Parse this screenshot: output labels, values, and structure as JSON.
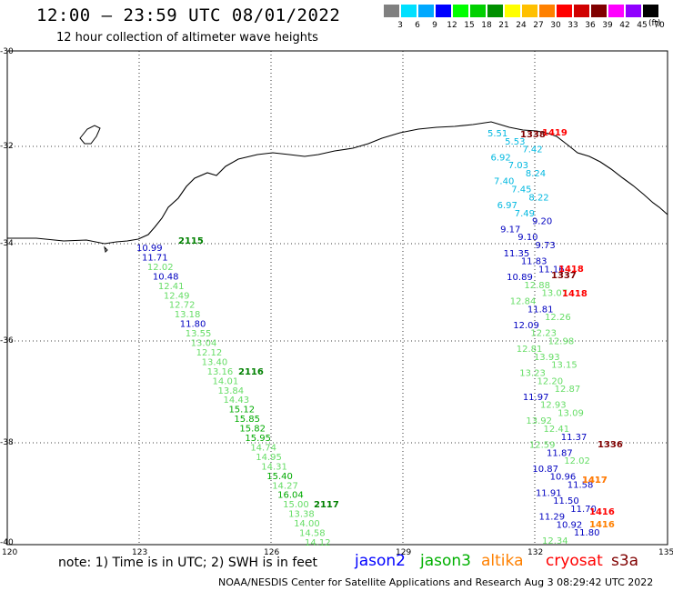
{
  "header": {
    "title": "12:00 – 23:59 UTC 08/01/2022",
    "subtitle": "12 hour collection of altimeter wave heights"
  },
  "color_scale": {
    "colors": [
      "#808080",
      "#00e0ff",
      "#00a8ff",
      "#0000ff",
      "#00ff00",
      "#00d000",
      "#009000",
      "#ffff00",
      "#ffc000",
      "#ff8000",
      "#ff0000",
      "#d00000",
      "#800000",
      "#ff00ff",
      "#9000ff",
      "#000000"
    ],
    "labels": [
      "3",
      "6",
      "9",
      "12",
      "15",
      "18",
      "21",
      "24",
      "27",
      "30",
      "33",
      "36",
      "39",
      "42",
      "45",
      "70"
    ],
    "unit": "(ft)"
  },
  "axes": {
    "y_labels": [
      "-30",
      "-32",
      "-34",
      "-36",
      "-38",
      "-40"
    ],
    "x_labels": [
      "120",
      "123",
      "126",
      "129",
      "132",
      "135"
    ]
  },
  "footer": {
    "note": "note: 1) Time is in UTC; 2) SWH is in feet",
    "legend": [
      {
        "name": "jason2",
        "color": "#0000ff"
      },
      {
        "name": "jason3",
        "color": "#00b000"
      },
      {
        "name": "altika",
        "color": "#ff8000"
      },
      {
        "name": "cryosat",
        "color": "#ff0000"
      },
      {
        "name": "s3a",
        "color": "#800000"
      }
    ],
    "credit": "NOAA/NESDIS Center for Satellite Applications and Research     Aug  3 08:29:42 UTC 2022"
  },
  "tracks": [
    {
      "label": "2115",
      "color": "#008000",
      "points": [
        {
          "v": "10.99",
          "c": "#0000c0"
        },
        {
          "v": "11.71",
          "c": "#0000c0"
        },
        {
          "v": "12.02",
          "c": "#66dd66"
        },
        {
          "v": "10.48",
          "c": "#0000c0"
        },
        {
          "v": "12.41",
          "c": "#66dd66"
        },
        {
          "v": "12.49",
          "c": "#66dd66"
        },
        {
          "v": "12.72",
          "c": "#66dd66"
        },
        {
          "v": "13.18",
          "c": "#66dd66"
        },
        {
          "v": "11.80",
          "c": "#0000c0"
        },
        {
          "v": "13.55",
          "c": "#66dd66"
        },
        {
          "v": "13.04",
          "c": "#66dd66"
        },
        {
          "v": "12.12",
          "c": "#66dd66"
        },
        {
          "v": "13.40",
          "c": "#66dd66"
        },
        {
          "v": "13.16",
          "c": "#66dd66"
        },
        {
          "v": "14.01",
          "c": "#66dd66"
        },
        {
          "v": "13.84",
          "c": "#66dd66"
        },
        {
          "v": "14.43",
          "c": "#66dd66"
        },
        {
          "v": "15.12",
          "c": "#00aa00"
        },
        {
          "v": "15.85",
          "c": "#00aa00"
        },
        {
          "v": "15.82",
          "c": "#00aa00"
        },
        {
          "v": "15.95",
          "c": "#00aa00"
        },
        {
          "v": "14.74",
          "c": "#66dd66"
        },
        {
          "v": "14.95",
          "c": "#66dd66"
        },
        {
          "v": "14.31",
          "c": "#66dd66"
        },
        {
          "v": "15.40",
          "c": "#00aa00"
        },
        {
          "v": "14.27",
          "c": "#66dd66"
        },
        {
          "v": "16.04",
          "c": "#00aa00"
        },
        {
          "v": "15.00",
          "c": "#66dd66"
        },
        {
          "v": "13.38",
          "c": "#66dd66"
        },
        {
          "v": "14.00",
          "c": "#66dd66"
        },
        {
          "v": "14.58",
          "c": "#66dd66"
        },
        {
          "v": "14.12",
          "c": "#66dd66"
        }
      ]
    },
    {
      "label": "2116",
      "color": "#008000",
      "points": []
    },
    {
      "label": "2117",
      "color": "#008000",
      "points": []
    }
  ],
  "east_tracks": {
    "labels": [
      {
        "t": "1419",
        "c": "#ff0000"
      },
      {
        "t": "1338",
        "c": "#800000"
      },
      {
        "t": "1418",
        "c": "#ff0000"
      },
      {
        "t": "1337",
        "c": "#800000"
      },
      {
        "t": "1418",
        "c": "#ff0000"
      },
      {
        "t": "1336",
        "c": "#800000"
      },
      {
        "t": "1417",
        "c": "#ff0000"
      },
      {
        "t": "1417",
        "c": "#ff8000"
      },
      {
        "t": "1416",
        "c": "#ff0000"
      },
      {
        "t": "1416",
        "c": "#ff8000"
      }
    ],
    "values": [
      {
        "v": "5.51",
        "c": "#00b8e0"
      },
      {
        "v": "5.53",
        "c": "#00b8e0"
      },
      {
        "v": "7.42",
        "c": "#00b8e0"
      },
      {
        "v": "6.92",
        "c": "#00b8e0"
      },
      {
        "v": "7.03",
        "c": "#00b8e0"
      },
      {
        "v": "8.24",
        "c": "#00b8e0"
      },
      {
        "v": "7.40",
        "c": "#00b8e0"
      },
      {
        "v": "7.45",
        "c": "#00b8e0"
      },
      {
        "v": "8.22",
        "c": "#00b8e0"
      },
      {
        "v": "6.97",
        "c": "#00b8e0"
      },
      {
        "v": "7.49",
        "c": "#00b8e0"
      },
      {
        "v": "9.20",
        "c": "#0000c0"
      },
      {
        "v": "9.17",
        "c": "#0000c0"
      },
      {
        "v": "9.10",
        "c": "#0000c0"
      },
      {
        "v": "9.73",
        "c": "#0000c0"
      },
      {
        "v": "11.35",
        "c": "#0000c0"
      },
      {
        "v": "11.83",
        "c": "#0000c0"
      },
      {
        "v": "11.16",
        "c": "#0000c0"
      },
      {
        "v": "10.89",
        "c": "#0000c0"
      },
      {
        "v": "12.88",
        "c": "#66dd66"
      },
      {
        "v": "13.07",
        "c": "#66dd66"
      },
      {
        "v": "12.84",
        "c": "#66dd66"
      },
      {
        "v": "11.81",
        "c": "#0000c0"
      },
      {
        "v": "12.26",
        "c": "#66dd66"
      },
      {
        "v": "12.09",
        "c": "#0000c0"
      },
      {
        "v": "12.23",
        "c": "#66dd66"
      },
      {
        "v": "12.98",
        "c": "#66dd66"
      },
      {
        "v": "12.81",
        "c": "#66dd66"
      },
      {
        "v": "13.93",
        "c": "#66dd66"
      },
      {
        "v": "13.15",
        "c": "#66dd66"
      },
      {
        "v": "13.23",
        "c": "#66dd66"
      },
      {
        "v": "12.20",
        "c": "#66dd66"
      },
      {
        "v": "12.87",
        "c": "#66dd66"
      },
      {
        "v": "11.97",
        "c": "#0000c0"
      },
      {
        "v": "12.93",
        "c": "#66dd66"
      },
      {
        "v": "13.09",
        "c": "#66dd66"
      },
      {
        "v": "13.92",
        "c": "#66dd66"
      },
      {
        "v": "12.41",
        "c": "#66dd66"
      },
      {
        "v": "11.37",
        "c": "#0000c0"
      },
      {
        "v": "12.59",
        "c": "#66dd66"
      },
      {
        "v": "11.87",
        "c": "#0000c0"
      },
      {
        "v": "12.02",
        "c": "#66dd66"
      },
      {
        "v": "10.87",
        "c": "#0000c0"
      },
      {
        "v": "10.96",
        "c": "#0000c0"
      },
      {
        "v": "11.58",
        "c": "#0000c0"
      },
      {
        "v": "11.91",
        "c": "#0000c0"
      },
      {
        "v": "11.50",
        "c": "#0000c0"
      },
      {
        "v": "11.70",
        "c": "#0000c0"
      },
      {
        "v": "11.29",
        "c": "#0000c0"
      },
      {
        "v": "10.92",
        "c": "#0000c0"
      },
      {
        "v": "11.80",
        "c": "#0000c0"
      },
      {
        "v": "12.34",
        "c": "#66dd66"
      }
    ]
  }
}
